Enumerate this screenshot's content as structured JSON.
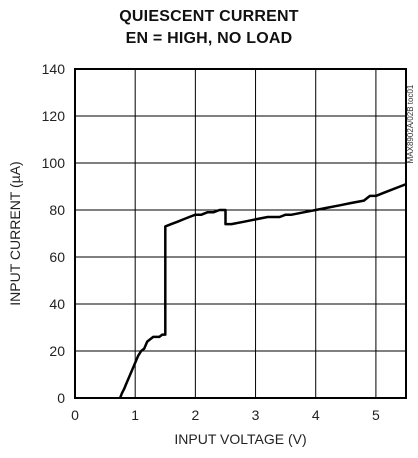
{
  "chart_data": {
    "type": "line",
    "title": "QUIESCENT CURRENT",
    "subtitle": "EN = HIGH, NO LOAD",
    "xlabel": "INPUT VOLTAGE (V)",
    "ylabel": "INPUT CURRENT (µA)",
    "figure_id": "MAX8902A/02B toc01",
    "xlim": [
      0,
      5.5
    ],
    "ylim": [
      0,
      140
    ],
    "xticks": [
      "0",
      "1",
      "2",
      "3",
      "4",
      "5"
    ],
    "yticks": [
      "0",
      "20",
      "40",
      "60",
      "80",
      "100",
      "120",
      "140"
    ],
    "grid": true,
    "series": [
      {
        "color": "#000000",
        "x": [
          0.75,
          0.78,
          0.82,
          0.85,
          0.9,
          0.95,
          1.0,
          1.05,
          1.1,
          1.15,
          1.2,
          1.25,
          1.3,
          1.35,
          1.4,
          1.45,
          1.5,
          1.5,
          1.6,
          1.7,
          1.8,
          1.9,
          2.0,
          2.1,
          2.2,
          2.3,
          2.4,
          2.5,
          2.5,
          2.6,
          2.8,
          3.0,
          3.2,
          3.4,
          3.5,
          3.6,
          3.8,
          4.0,
          4.2,
          4.4,
          4.6,
          4.8,
          4.9,
          5.0,
          5.2,
          5.4,
          5.5
        ],
        "y": [
          0,
          2,
          4,
          6,
          9,
          12,
          15,
          18,
          20,
          21,
          24,
          25,
          26,
          26,
          26,
          27,
          27,
          73,
          74,
          75,
          76,
          77,
          78,
          78,
          79,
          79,
          80,
          80,
          74,
          74,
          75,
          76,
          77,
          77,
          78,
          78,
          79,
          80,
          81,
          82,
          83,
          84,
          86,
          86,
          88,
          90,
          91
        ]
      }
    ]
  }
}
